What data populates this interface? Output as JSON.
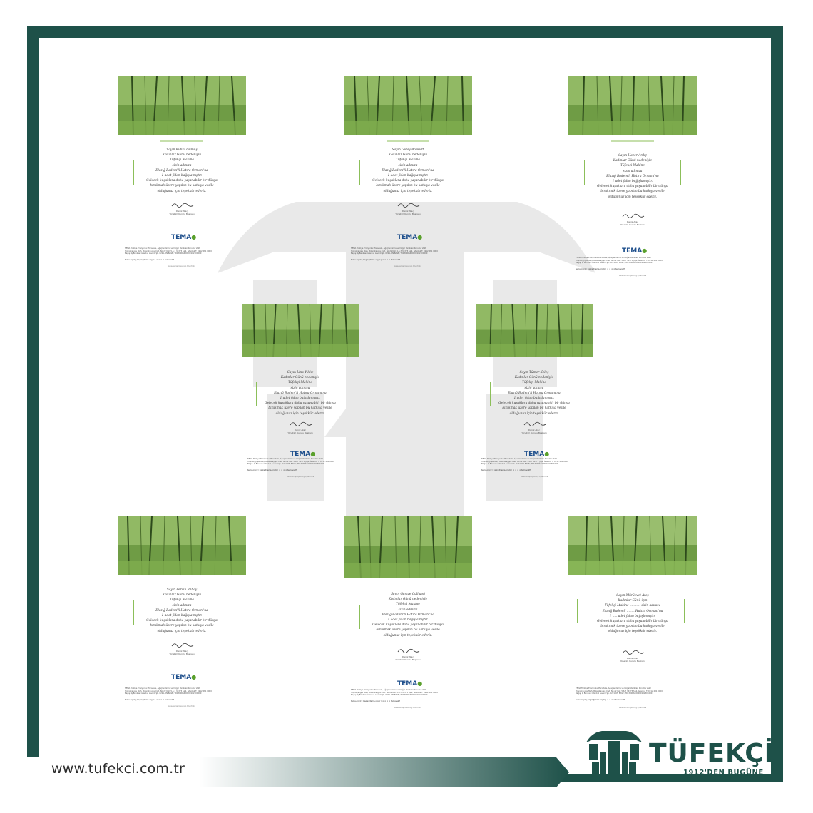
{
  "cards": [
    {
      "recipient": "Sayın Kübra Gümüş",
      "lines": [
        "Kadınlar Günü nedeniyle",
        "Tüfekçi Makine",
        "sizin adınıza",
        "Elazığ Badem'li Hatıra Ormanı'na",
        "1 adet fidan bağışlamıştır.",
        "Gelecek kuşaklara daha yaşanabilir bir dünya",
        "bırakmak üzere yapılan bu katkıya vesile",
        "olduğunuz için teşekkür ederiz."
      ]
    },
    {
      "recipient": "Sayın Gülay Bozkurt",
      "lines": [
        "Kadınlar Günü nedeniyle",
        "Tüfekçi Makine",
        "sizin adınıza",
        "Elazığ Badem'li Hatıra Ormanı'na",
        "1 adet fidan bağışlamıştır.",
        "Gelecek kuşaklara daha yaşanabilir bir dünya",
        "bırakmak üzere yapılan bu katkıya vesile",
        "olduğunuz için teşekkür ederiz."
      ]
    },
    {
      "recipient": "Sayın Hacer Ardıç",
      "lines": [
        "Kadınlar Günü nedeniyle",
        "Tüfekçi Makine",
        "sizin adınıza",
        "Elazığ Badem'li Hatıra Ormanı'na",
        "1 adet fidan bağışlamıştır.",
        "Gelecek kuşaklara daha yaşanabilir bir dünya",
        "bırakmak üzere yapılan bu katkıya vesile",
        "olduğunuz için teşekkür ederiz."
      ]
    },
    {
      "recipient": "Sayın Lina Yıldız",
      "lines": [
        "Kadınlar Günü nedeniyle",
        "Tüfekçi Makine",
        "sizin adınıza",
        "Elazığ Badem'li Hatıra Ormanı'na",
        "1 adet fidan bağışlamıştır.",
        "Gelecek kuşaklara daha yaşanabilir bir dünya",
        "bırakmak üzere yapılan bu katkıya vesile",
        "olduğunuz için teşekkür ederiz."
      ]
    },
    {
      "recipient": "Sayın Tümer Keleş",
      "lines": [
        "Kadınlar Günü nedeniyle",
        "Tüfekçi Makine",
        "sizin adınıza",
        "Elazığ Badem'li Hatıra Ormanı'na",
        "1 adet fidan bağışlamıştır.",
        "Gelecek kuşaklara daha yaşanabilir bir dünya",
        "bırakmak üzere yapılan bu katkıya vesile",
        "olduğunuz için teşekkür ederiz."
      ]
    },
    {
      "recipient": "Sayın Pervin Bilbay",
      "lines": [
        "Kadınlar Günü nedeniyle",
        "Tüfekçi Makine",
        "sizin adınıza",
        "Elazığ Badem'li Hatıra Ormanı'na",
        "1 adet fidan bağışlamıştır.",
        "Gelecek kuşaklara daha yaşanabilir bir dünya",
        "bırakmak üzere yapılan bu katkıya vesile",
        "olduğunuz için teşekkür ederiz."
      ]
    },
    {
      "recipient": "Sayın Gamze Culhaoğ",
      "lines": [
        "Kadınlar Günü nedeniyle",
        "Tüfekçi Makine",
        "sizin adınıza",
        "Elazığ Badem'li Hatıra Ormanı'na",
        "1 adet fidan bağışlamıştır.",
        "Gelecek kuşaklara daha yaşanabilir bir dünya",
        "bırakmak üzere yapılan bu katkıya vesile",
        "olduğunuz için teşekkür ederiz."
      ]
    },
    {
      "recipient": "Sayın Mürüvvet Ateş",
      "lines": [
        "Kadınlar Günü için",
        "Tüfekçi Makine ........... sizin adınıza",
        "Elazığ Bademli ........ Hatıra Ormanı'na",
        "1 ..... adet fidan bağışlamıştır.",
        "Gelecek kuşaklara daha yaşanabilir bir dünya",
        "bırakmak üzere yapılan bu katkıya vesile",
        "olduğunuz için teşekkür ederiz."
      ]
    }
  ],
  "common": {
    "signature": "Deniz Ataç",
    "signer_name": "Deniz Ataç",
    "signer_title": "Yönetim Kurulu Başkanı",
    "logo_text": "TEMA",
    "footer_line1": "TEMA Türkiye Erozyonla Mücadele, Ağaçlandırma ve Doğal Varlıkları Koruma Vakfı",
    "footer_line2": "Hüsnükaygısı Mah. Bülenlkaygısı Cad. No:22 Kat: 5-6-7 34375 Şişli, İstanbul T: 0212 281 0000",
    "footer_line3": "Bağış: İş Bankası İstanbul Levent Şb. 0221-ON BASE; TR130006400000102301000",
    "social": "tema.org.tr  |  bagis@tema.org.tr  |  ✦ ✦ ✦ ✦  temavakfi",
    "tiny": "www.temaprojesi.org.tr/sertifika"
  },
  "bottom": {
    "url": "www.tufekci.com.tr",
    "brand": "TÜFEKÇİ",
    "tagline": "1912'DEN BUGÜNE"
  },
  "colors": {
    "frame": "#1e5149",
    "forest": "#5e8c3a",
    "accent_green": "#8cbf5a"
  }
}
